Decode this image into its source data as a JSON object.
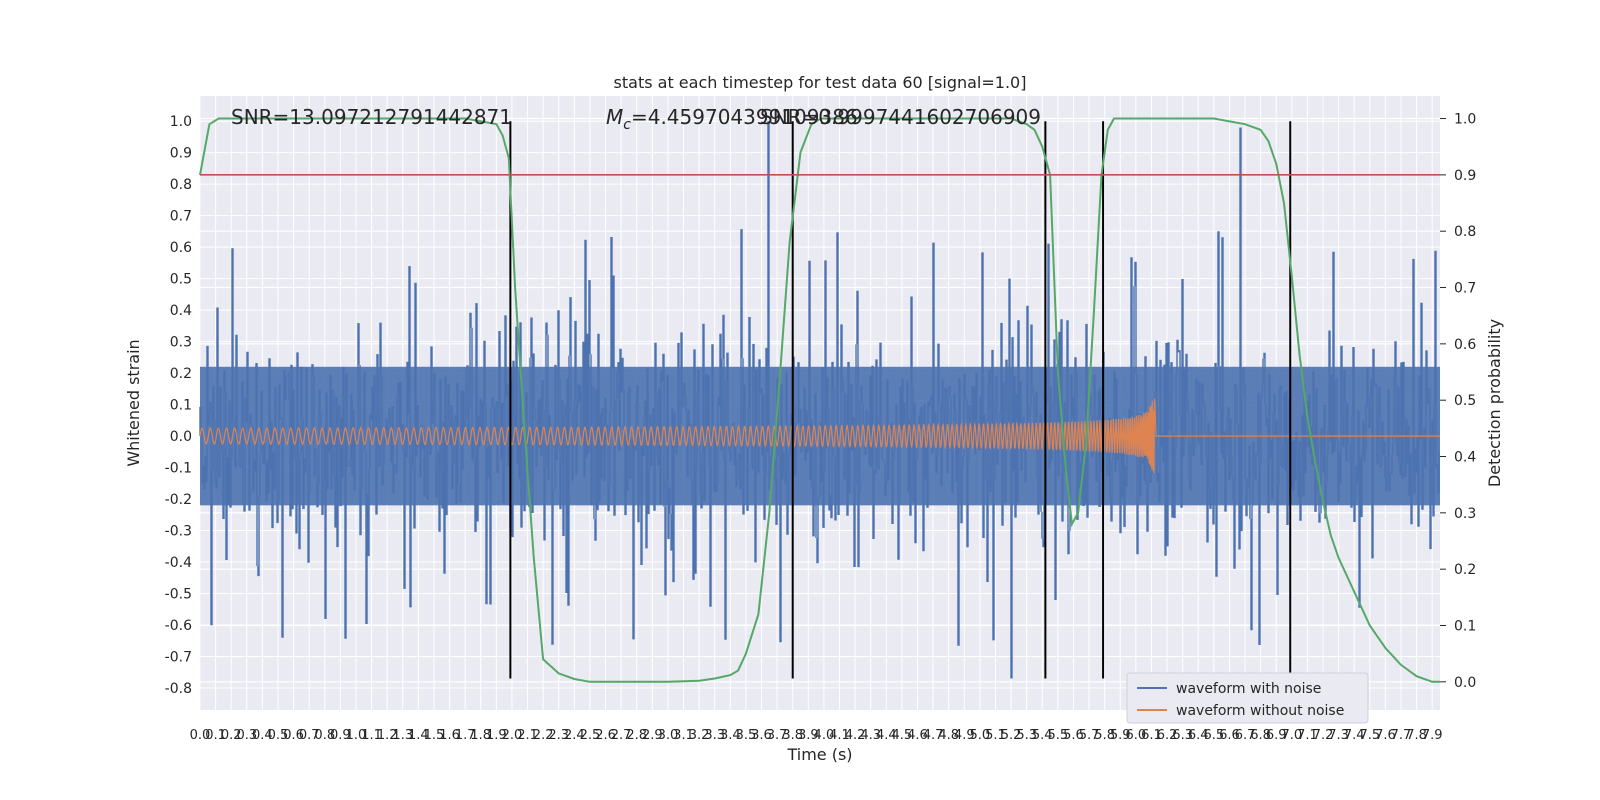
{
  "chart_data": {
    "type": "line",
    "title": "stats at each timestep for test data 60 [signal=1.0]",
    "xlabel": "Time (s)",
    "ylabel": "Whitened strain",
    "y2label": "Detection probability",
    "xlim": [
      0.0,
      7.95
    ],
    "ylim": [
      -0.87,
      1.08
    ],
    "y2lim": [
      -0.05,
      1.04
    ],
    "xticks": [
      "0.0",
      "0.1",
      "0.2",
      "0.3",
      "0.4",
      "0.5",
      "0.6",
      "0.7",
      "0.8",
      "0.9",
      "1.0",
      "1.1",
      "1.2",
      "1.3",
      "1.4",
      "1.5",
      "1.6",
      "1.7",
      "1.8",
      "1.9",
      "2.0",
      "2.1",
      "2.2",
      "2.3",
      "2.4",
      "2.5",
      "2.6",
      "2.7",
      "2.8",
      "2.9",
      "3.0",
      "3.1",
      "3.2",
      "3.3",
      "3.4",
      "3.5",
      "3.6",
      "3.7",
      "3.8",
      "3.9",
      "4.0",
      "4.1",
      "4.2",
      "4.3",
      "4.4",
      "4.5",
      "4.6",
      "4.7",
      "4.8",
      "4.9",
      "5.0",
      "5.1",
      "5.2",
      "5.3",
      "5.4",
      "5.5",
      "5.6",
      "5.7",
      "5.8",
      "5.9",
      "6.0",
      "6.1",
      "6.2",
      "6.3",
      "6.4",
      "6.5",
      "6.6",
      "6.7",
      "6.8",
      "6.9",
      "7.0",
      "7.1",
      "7.2",
      "7.3",
      "7.4",
      "7.5",
      "7.6",
      "7.7",
      "7.8",
      "7.9"
    ],
    "yticks": [
      "-0.8",
      "-0.7",
      "-0.6",
      "-0.5",
      "-0.4",
      "-0.3",
      "-0.2",
      "-0.1",
      "0.0",
      "0.1",
      "0.2",
      "0.3",
      "0.4",
      "0.5",
      "0.6",
      "0.7",
      "0.8",
      "0.9",
      "1.0"
    ],
    "y2ticks": [
      "0.0",
      "0.1",
      "0.2",
      "0.3",
      "0.4",
      "0.5",
      "0.6",
      "0.7",
      "0.8",
      "0.9",
      "1.0"
    ],
    "grid": true,
    "legend_position": "lower-right",
    "series": [
      {
        "name": "waveform with noise",
        "color": "#4c72b0",
        "envelope": "noise band roughly ±0.3 with spikes to about ±0.7; spikes near 1.0 at t≈3.64 and t≈6.67"
      },
      {
        "name": "waveform without noise",
        "color": "#dd8452",
        "chirp": {
          "start_amplitude": 0.025,
          "peak_amplitude": 0.2,
          "merger_time": 6.12,
          "post_merger_value": 0.0
        }
      },
      {
        "name": "",
        "color": "#55a868",
        "axis": "right",
        "x": [
          0.0,
          0.06,
          0.12,
          0.2,
          0.3,
          0.6,
          1.0,
          1.4,
          1.7,
          1.9,
          1.94,
          1.98,
          2.02,
          2.08,
          2.14,
          2.2,
          2.3,
          2.4,
          2.5,
          2.6,
          2.8,
          3.0,
          3.2,
          3.3,
          3.4,
          3.45,
          3.5,
          3.58,
          3.65,
          3.72,
          3.78,
          3.85,
          3.92,
          3.98,
          4.05,
          4.15,
          4.3,
          4.6,
          5.0,
          5.2,
          5.3,
          5.35,
          5.4,
          5.45,
          5.5,
          5.55,
          5.59,
          5.63,
          5.68,
          5.73,
          5.78,
          5.82,
          5.86,
          5.9,
          5.97,
          6.05,
          6.2,
          6.5,
          6.7,
          6.8,
          6.85,
          6.9,
          6.95,
          7.0,
          7.05,
          7.1,
          7.15,
          7.2,
          7.25,
          7.3,
          7.4,
          7.5,
          7.6,
          7.7,
          7.8,
          7.9,
          7.95
        ],
        "values": [
          0.9,
          0.99,
          1.0,
          1.0,
          1.0,
          1.0,
          1.0,
          1.0,
          1.0,
          0.99,
          0.97,
          0.93,
          0.7,
          0.45,
          0.22,
          0.04,
          0.015,
          0.005,
          0.0,
          0.0,
          0.0,
          0.0,
          0.002,
          0.006,
          0.012,
          0.02,
          0.05,
          0.12,
          0.3,
          0.55,
          0.78,
          0.94,
          0.99,
          1.0,
          1.0,
          1.0,
          1.0,
          1.0,
          1.0,
          1.0,
          0.99,
          0.98,
          0.95,
          0.9,
          0.55,
          0.38,
          0.28,
          0.3,
          0.42,
          0.65,
          0.9,
          0.98,
          1.0,
          1.0,
          1.0,
          1.0,
          1.0,
          1.0,
          0.99,
          0.98,
          0.96,
          0.92,
          0.85,
          0.72,
          0.58,
          0.47,
          0.39,
          0.32,
          0.26,
          0.22,
          0.16,
          0.1,
          0.06,
          0.03,
          0.01,
          0.0,
          0.0
        ]
      },
      {
        "name": "",
        "color": "#c44e52",
        "type": "hline",
        "y": 0.9,
        "axis": "right"
      }
    ],
    "vlines": [
      1.99,
      3.8,
      5.42,
      5.79,
      6.99
    ],
    "vline_color": "#000000",
    "vline_range": [
      -0.77,
      1.0
    ],
    "annotations": [
      {
        "text": "SNR=13.097212791442871",
        "x": 0.2,
        "y": 1.0
      },
      {
        "text_prefix": "M",
        "text_sub": "c",
        "text_suffix": "=4.459704399109386",
        "x": 2.6,
        "y": 1.0
      },
      {
        "text": "SNR=0.9997441602706909",
        "x": 3.58,
        "y": 1.0
      }
    ],
    "colors": {
      "axes_bg": "#eaeaf2",
      "grid": "#ffffff"
    }
  }
}
